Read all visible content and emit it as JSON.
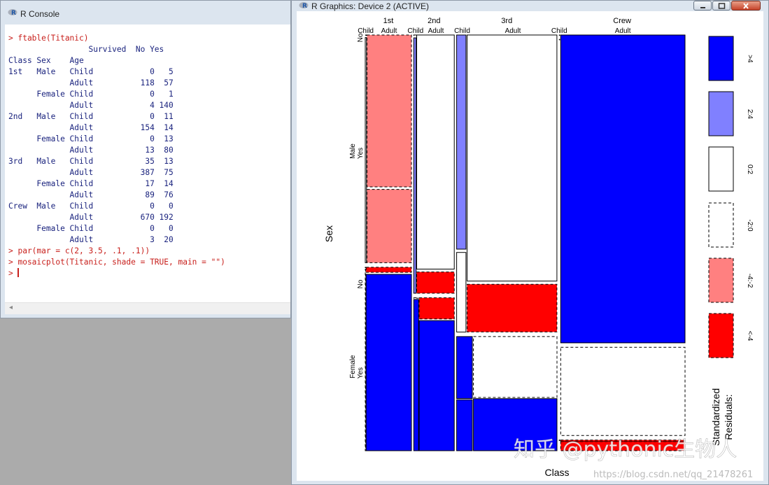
{
  "console": {
    "title": "R Console",
    "lines": [
      {
        "kind": "cmd",
        "text": "> ftable(Titanic)"
      },
      {
        "kind": "out",
        "text": "                 Survived  No Yes"
      },
      {
        "kind": "out",
        "text": "Class Sex    Age                   "
      },
      {
        "kind": "out",
        "text": "1st   Male   Child            0   5"
      },
      {
        "kind": "out",
        "text": "             Adult          118  57"
      },
      {
        "kind": "out",
        "text": "      Female Child            0   1"
      },
      {
        "kind": "out",
        "text": "             Adult            4 140"
      },
      {
        "kind": "out",
        "text": "2nd   Male   Child            0  11"
      },
      {
        "kind": "out",
        "text": "             Adult          154  14"
      },
      {
        "kind": "out",
        "text": "      Female Child            0  13"
      },
      {
        "kind": "out",
        "text": "             Adult           13  80"
      },
      {
        "kind": "out",
        "text": "3rd   Male   Child           35  13"
      },
      {
        "kind": "out",
        "text": "             Adult          387  75"
      },
      {
        "kind": "out",
        "text": "      Female Child           17  14"
      },
      {
        "kind": "out",
        "text": "             Adult           89  76"
      },
      {
        "kind": "out",
        "text": "Crew  Male   Child            0   0"
      },
      {
        "kind": "out",
        "text": "             Adult          670 192"
      },
      {
        "kind": "out",
        "text": "      Female Child            0   0"
      },
      {
        "kind": "out",
        "text": "             Adult            3  20"
      },
      {
        "kind": "cmd",
        "text": "> par(mar = c(2, 3.5, .1, .1))"
      },
      {
        "kind": "cmd",
        "text": "> mosaicplot(Titanic, shade = TRUE, main = \"\")"
      },
      {
        "kind": "cmd",
        "text": "> ",
        "cursor": true
      }
    ],
    "hscroll_arrow": "◂"
  },
  "graphics": {
    "title": "R Graphics: Device 2 (ACTIVE)"
  },
  "chart_data": {
    "type": "mosaic",
    "xlabel": "Class",
    "ylabel": "Sex",
    "dimensions": [
      "Class",
      "Sex",
      "Age",
      "Survived"
    ],
    "class_labels": [
      "1st",
      "2nd",
      "3rd",
      "Crew"
    ],
    "sex_labels": [
      "Male",
      "Female"
    ],
    "age_labels": [
      "Child",
      "Adult"
    ],
    "survived_labels": [
      "No",
      "Yes"
    ],
    "counts": [
      {
        "class": "1st",
        "sex": "Male",
        "age": "Child",
        "no": 0,
        "yes": 5
      },
      {
        "class": "1st",
        "sex": "Male",
        "age": "Adult",
        "no": 118,
        "yes": 57
      },
      {
        "class": "1st",
        "sex": "Female",
        "age": "Child",
        "no": 0,
        "yes": 1
      },
      {
        "class": "1st",
        "sex": "Female",
        "age": "Adult",
        "no": 4,
        "yes": 140
      },
      {
        "class": "2nd",
        "sex": "Male",
        "age": "Child",
        "no": 0,
        "yes": 11
      },
      {
        "class": "2nd",
        "sex": "Male",
        "age": "Adult",
        "no": 154,
        "yes": 14
      },
      {
        "class": "2nd",
        "sex": "Female",
        "age": "Child",
        "no": 0,
        "yes": 13
      },
      {
        "class": "2nd",
        "sex": "Female",
        "age": "Adult",
        "no": 13,
        "yes": 80
      },
      {
        "class": "3rd",
        "sex": "Male",
        "age": "Child",
        "no": 35,
        "yes": 13
      },
      {
        "class": "3rd",
        "sex": "Male",
        "age": "Adult",
        "no": 387,
        "yes": 75
      },
      {
        "class": "3rd",
        "sex": "Female",
        "age": "Child",
        "no": 17,
        "yes": 14
      },
      {
        "class": "3rd",
        "sex": "Female",
        "age": "Adult",
        "no": 89,
        "yes": 76
      },
      {
        "class": "Crew",
        "sex": "Male",
        "age": "Child",
        "no": 0,
        "yes": 0
      },
      {
        "class": "Crew",
        "sex": "Male",
        "age": "Adult",
        "no": 670,
        "yes": 192
      },
      {
        "class": "Crew",
        "sex": "Female",
        "age": "Child",
        "no": 0,
        "yes": 0
      },
      {
        "class": "Crew",
        "sex": "Female",
        "age": "Adult",
        "no": 3,
        "yes": 20
      }
    ],
    "legend": {
      "title": "Standardized\nResiduals:",
      "position": "right",
      "entries": [
        {
          "label": ">4",
          "color": "#0000ff",
          "dashed": false
        },
        {
          "label": "2:4",
          "color": "#8080ff",
          "dashed": false
        },
        {
          "label": "0:2",
          "color": "#ffffff",
          "dashed": false
        },
        {
          "label": "-2:0",
          "color": "#ffffff",
          "dashed": true
        },
        {
          "label": "-4:-2",
          "color": "#ff8080",
          "dashed": true
        },
        {
          "label": "<-4",
          "color": "#ff0000",
          "dashed": true
        }
      ]
    }
  },
  "watermark": {
    "logo_text": "知乎 @pythonic生物人",
    "url_text": "https://blog.csdn.net/qq_21478261"
  }
}
